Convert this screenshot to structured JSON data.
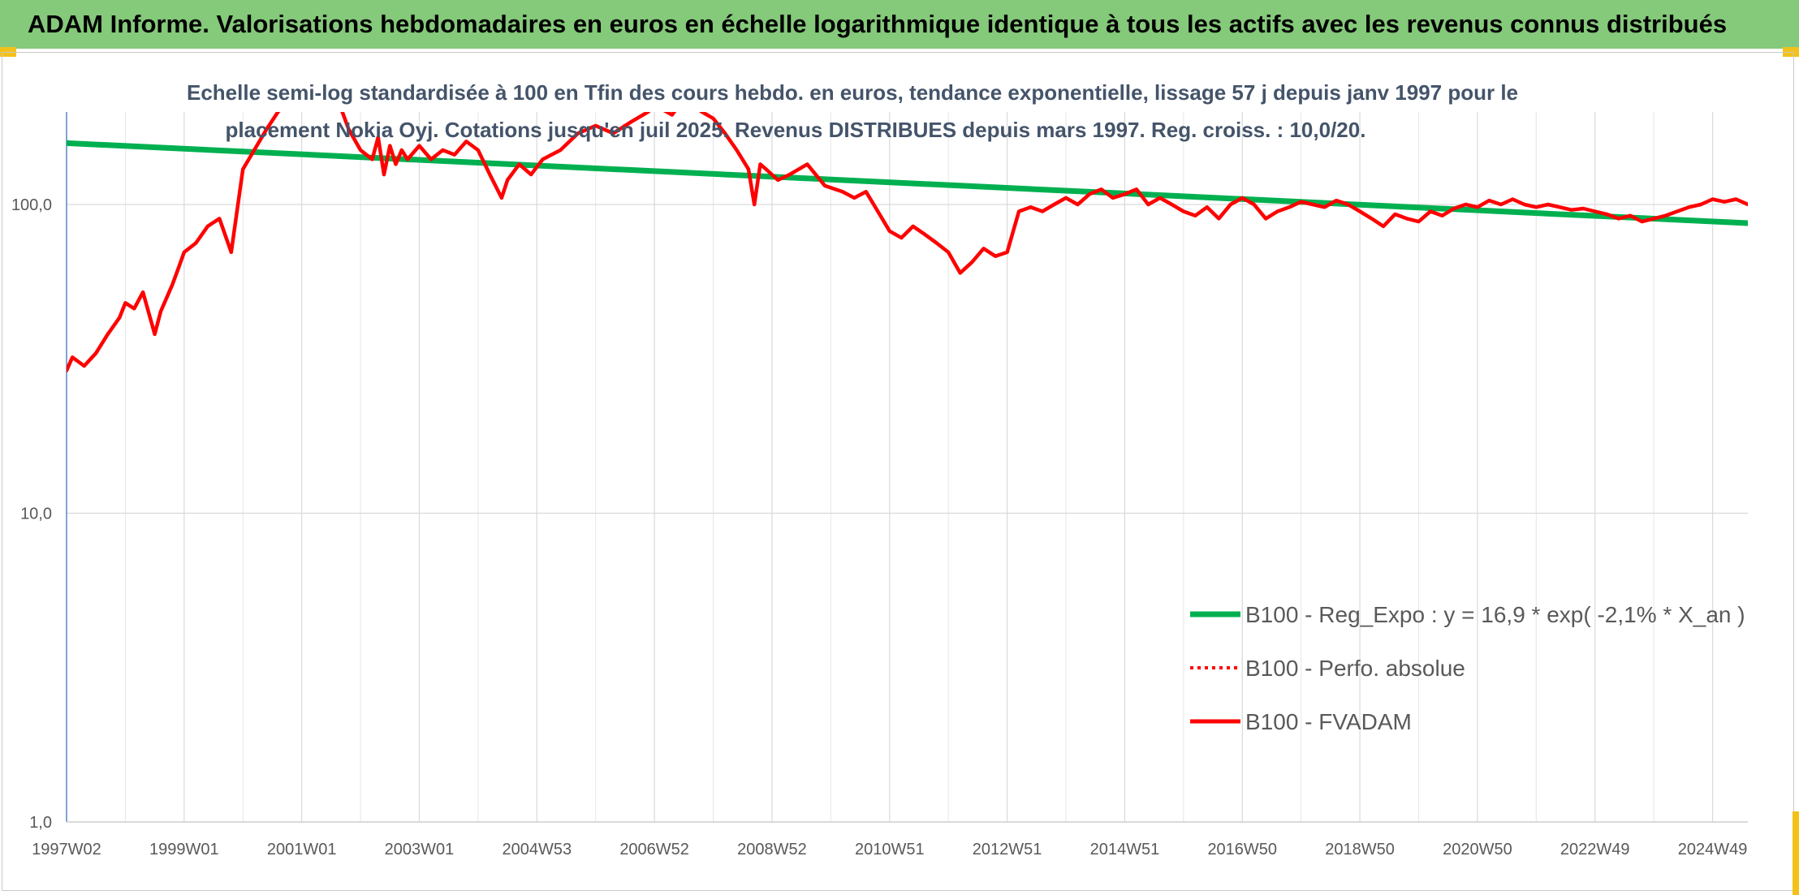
{
  "header": {
    "title": "ADAM Informe. Valorisations hebdomadaires en euros en échelle logarithmique identique à tous les actifs avec les revenus connus distribués"
  },
  "chart_data": {
    "type": "line",
    "title_line1": "Echelle semi-log standardisée à 100 en Tfin des cours hebdo. en euros, tendance exponentielle, lissage 57 j depuis janv 1997 pour le",
    "title_line2": "placement Nokia Oyj. Cotations jusqu'en juil 2025. Revenus DISTRIBUES depuis mars 1997. Reg. croiss. : 10,0/20.",
    "y_scale": "log",
    "ylim": [
      1,
      200
    ],
    "xlim": [
      1997.0,
      2025.6
    ],
    "grid": true,
    "legend_placement": "bottom-right",
    "y_ticks": [
      {
        "value": 1,
        "label": "1,0"
      },
      {
        "value": 10,
        "label": "10,0"
      },
      {
        "value": 100,
        "label": "100,0"
      }
    ],
    "x_ticks": [
      {
        "value": 1997.0,
        "label": "1997W02"
      },
      {
        "value": 1999.0,
        "label": "1999W01"
      },
      {
        "value": 2001.0,
        "label": "2001W01"
      },
      {
        "value": 2003.0,
        "label": "2003W01"
      },
      {
        "value": 2005.0,
        "label": "2004W53"
      },
      {
        "value": 2007.0,
        "label": "2006W52"
      },
      {
        "value": 2009.0,
        "label": "2008W52"
      },
      {
        "value": 2011.0,
        "label": "2010W51"
      },
      {
        "value": 2013.0,
        "label": "2012W51"
      },
      {
        "value": 2015.0,
        "label": "2014W51"
      },
      {
        "value": 2017.0,
        "label": "2016W50"
      },
      {
        "value": 2019.0,
        "label": "2018W50"
      },
      {
        "value": 2021.0,
        "label": "2020W50"
      },
      {
        "value": 2023.0,
        "label": "2022W49"
      },
      {
        "value": 2025.0,
        "label": "2024W49"
      }
    ],
    "series": [
      {
        "name": "B100 - Reg_Expo : y = 16,9 * exp( -2,1% *  X_an )",
        "color": "#00b050",
        "style": "solid",
        "x": [
          1997.0,
          2025.6
        ],
        "y": [
          158,
          87
        ]
      },
      {
        "name": "B100 - Perfo. absolue",
        "color": "#ff0000",
        "style": "dotted",
        "x": [],
        "y": []
      },
      {
        "name": "B100 - FVADAM",
        "color": "#ff0000",
        "style": "solid",
        "x": [
          1997.0,
          1997.1,
          1997.3,
          1997.5,
          1997.7,
          1997.9,
          1998.0,
          1998.15,
          1998.3,
          1998.5,
          1998.6,
          1998.8,
          1998.9,
          1999.0,
          1999.2,
          1999.4,
          1999.6,
          1999.8,
          2000.0,
          2000.4,
          2000.6,
          2001.0,
          2001.5,
          2001.8,
          2002.0,
          2002.2,
          2002.3,
          2002.4,
          2002.5,
          2002.6,
          2002.7,
          2002.8,
          2003.0,
          2003.2,
          2003.4,
          2003.6,
          2003.8,
          2004.0,
          2004.2,
          2004.4,
          2004.5,
          2004.7,
          2004.9,
          2005.1,
          2005.4,
          2005.7,
          2006.0,
          2006.3,
          2006.6,
          2006.9,
          2007.0,
          2007.3,
          2007.5,
          2007.8,
          2008.0,
          2008.2,
          2008.4,
          2008.6,
          2008.7,
          2008.8,
          2008.9,
          2009.1,
          2009.3,
          2009.6,
          2009.9,
          2010.2,
          2010.4,
          2010.6,
          2010.8,
          2011.0,
          2011.2,
          2011.4,
          2011.6,
          2011.8,
          2012.0,
          2012.2,
          2012.4,
          2012.6,
          2012.8,
          2013.0,
          2013.2,
          2013.4,
          2013.6,
          2013.8,
          2014.0,
          2014.2,
          2014.4,
          2014.6,
          2014.8,
          2015.0,
          2015.2,
          2015.4,
          2015.6,
          2015.8,
          2016.0,
          2016.2,
          2016.4,
          2016.6,
          2016.8,
          2017.0,
          2017.2,
          2017.4,
          2017.6,
          2017.8,
          2018.0,
          2018.2,
          2018.4,
          2018.6,
          2018.8,
          2019.0,
          2019.2,
          2019.4,
          2019.6,
          2019.8,
          2020.0,
          2020.2,
          2020.4,
          2020.6,
          2020.8,
          2021.0,
          2021.2,
          2021.4,
          2021.6,
          2021.8,
          2022.0,
          2022.2,
          2022.4,
          2022.6,
          2022.8,
          2023.0,
          2023.2,
          2023.4,
          2023.6,
          2023.8,
          2024.0,
          2024.2,
          2024.4,
          2024.6,
          2024.8,
          2025.0,
          2025.2,
          2025.4,
          2025.6
        ],
        "y": [
          29,
          32,
          30,
          33,
          38,
          43,
          48,
          46,
          52,
          38,
          45,
          55,
          62,
          70,
          75,
          85,
          90,
          70,
          130,
          175,
          200,
          230,
          250,
          175,
          150,
          140,
          165,
          125,
          155,
          135,
          150,
          140,
          155,
          140,
          150,
          145,
          160,
          150,
          125,
          105,
          120,
          135,
          125,
          140,
          150,
          170,
          180,
          170,
          185,
          200,
          210,
          195,
          220,
          200,
          190,
          170,
          150,
          130,
          100,
          135,
          130,
          120,
          125,
          135,
          115,
          110,
          105,
          110,
          95,
          82,
          78,
          85,
          80,
          75,
          70,
          60,
          65,
          72,
          68,
          70,
          95,
          98,
          95,
          100,
          105,
          100,
          108,
          112,
          105,
          108,
          112,
          100,
          105,
          100,
          95,
          92,
          98,
          90,
          100,
          105,
          100,
          90,
          95,
          98,
          102,
          100,
          98,
          103,
          100,
          95,
          90,
          85,
          93,
          90,
          88,
          95,
          92,
          97,
          100,
          98,
          103,
          100,
          104,
          100,
          98,
          100,
          98,
          96,
          97,
          95,
          93,
          90,
          92,
          88,
          90,
          92,
          95,
          98,
          100,
          104,
          102,
          104,
          100
        ]
      }
    ]
  }
}
